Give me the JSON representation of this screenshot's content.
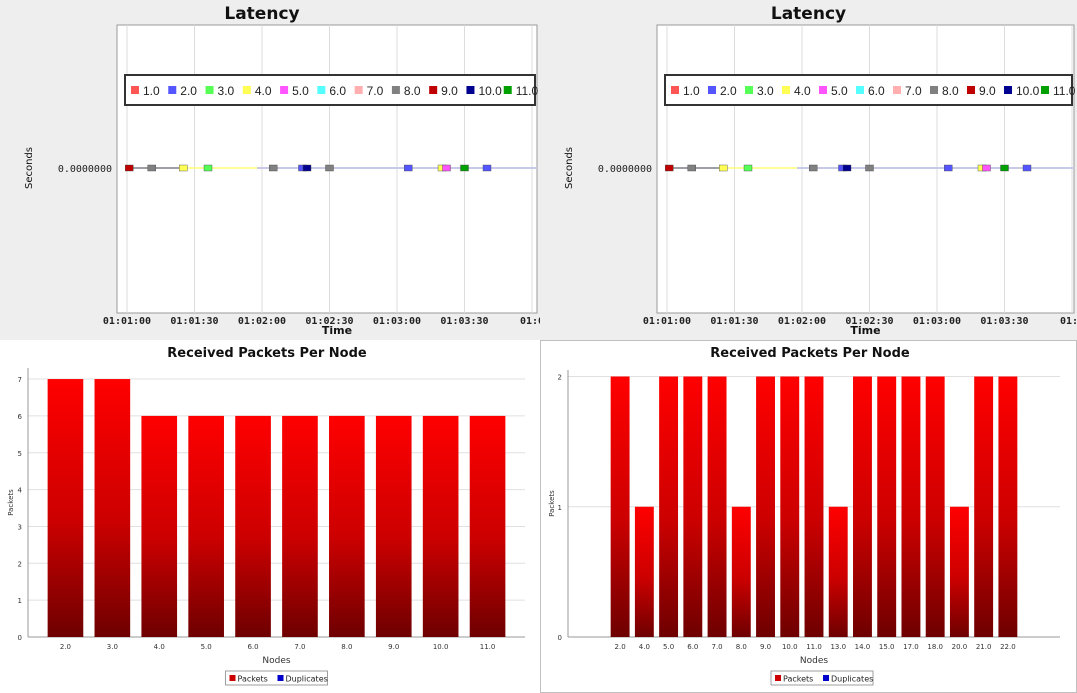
{
  "chart_data": [
    {
      "type": "scatter",
      "title": "Latency",
      "xlabel": "Time",
      "ylabel": "Seconds",
      "y_tick": "0.0000000",
      "x_ticks": [
        "01:01:00",
        "01:01:30",
        "01:02:00",
        "01:02:30",
        "01:03:00",
        "01:03:30",
        "01:0"
      ],
      "legend": [
        "1.0",
        "2.0",
        "3.0",
        "4.0",
        "5.0",
        "6.0",
        "7.0",
        "8.0",
        "9.0",
        "10.0",
        "11.0"
      ],
      "legend_colors": [
        "#ff5555",
        "#5555ff",
        "#55ff55",
        "#ffff55",
        "#ff55ff",
        "#55ffff",
        "#ffafaf",
        "#808080",
        "#c00000",
        "#000090",
        "#00a000"
      ],
      "legend_placement": "top",
      "series_x": [
        1.0,
        11.0,
        25.0,
        36.0,
        65.0,
        78.0,
        80.0,
        90.0,
        125.0,
        140.0,
        142.0,
        150.0,
        160.0
      ],
      "series_color_idx": [
        8,
        7,
        3,
        2,
        7,
        1,
        9,
        7,
        1,
        3,
        4,
        10,
        1
      ]
    },
    {
      "type": "scatter",
      "title": "Latency",
      "xlabel": "Time",
      "ylabel": "Seconds",
      "y_tick": "0.0000000",
      "x_ticks": [
        "01:01:00",
        "01:01:30",
        "01:02:00",
        "01:02:30",
        "01:03:00",
        "01:03:30",
        "01:0"
      ],
      "legend": [
        "1.0",
        "2.0",
        "3.0",
        "4.0",
        "5.0",
        "6.0",
        "7.0",
        "8.0",
        "9.0",
        "10.0",
        "11.0"
      ],
      "legend_colors": [
        "#ff5555",
        "#5555ff",
        "#55ff55",
        "#ffff55",
        "#ff55ff",
        "#55ffff",
        "#ffafaf",
        "#808080",
        "#c00000",
        "#000090",
        "#00a000"
      ],
      "legend_placement": "top",
      "series_x": [
        1.0,
        11.0,
        25.0,
        36.0,
        65.0,
        78.0,
        80.0,
        90.0,
        125.0,
        140.0,
        142.0,
        150.0,
        160.0
      ],
      "series_color_idx": [
        8,
        7,
        3,
        2,
        7,
        1,
        9,
        7,
        1,
        3,
        4,
        10,
        1
      ]
    },
    {
      "type": "bar",
      "title": "Received Packets Per Node",
      "xlabel": "Nodes",
      "ylabel": "Packets",
      "categories": [
        "2.0",
        "3.0",
        "4.0",
        "5.0",
        "6.0",
        "7.0",
        "8.0",
        "9.0",
        "10.0",
        "11.0"
      ],
      "series": [
        {
          "name": "Packets",
          "values": [
            7,
            7,
            6,
            6,
            6,
            6,
            6,
            6,
            6,
            6
          ]
        }
      ],
      "ylim": [
        0,
        7.3
      ],
      "yticks": [
        0,
        1,
        2,
        3,
        4,
        5,
        6,
        7
      ],
      "legend": [
        "Packets",
        "Duplicates"
      ],
      "legend_colors": [
        "#cc0000",
        "#0000cc"
      ],
      "legend_placement": "bottom"
    },
    {
      "type": "bar",
      "title": "Received Packets Per Node",
      "xlabel": "Nodes",
      "ylabel": "Packets",
      "categories": [
        "2.0",
        "4.0",
        "5.0",
        "6.0",
        "7.0",
        "8.0",
        "9.0",
        "10.0",
        "11.0",
        "13.0",
        "14.0",
        "15.0",
        "17.0",
        "18.0",
        "20.0",
        "21.0",
        "22.0"
      ],
      "series": [
        {
          "name": "Packets",
          "values": [
            2,
            1,
            2,
            2,
            2,
            1,
            2,
            2,
            2,
            1,
            2,
            2,
            2,
            2,
            1,
            2,
            2
          ]
        }
      ],
      "ylim": [
        0,
        2.05
      ],
      "yticks": [
        0,
        1,
        2
      ],
      "legend": [
        "Packets",
        "Duplicates"
      ],
      "legend_colors": [
        "#cc0000",
        "#0000cc"
      ],
      "legend_placement": "bottom"
    }
  ]
}
